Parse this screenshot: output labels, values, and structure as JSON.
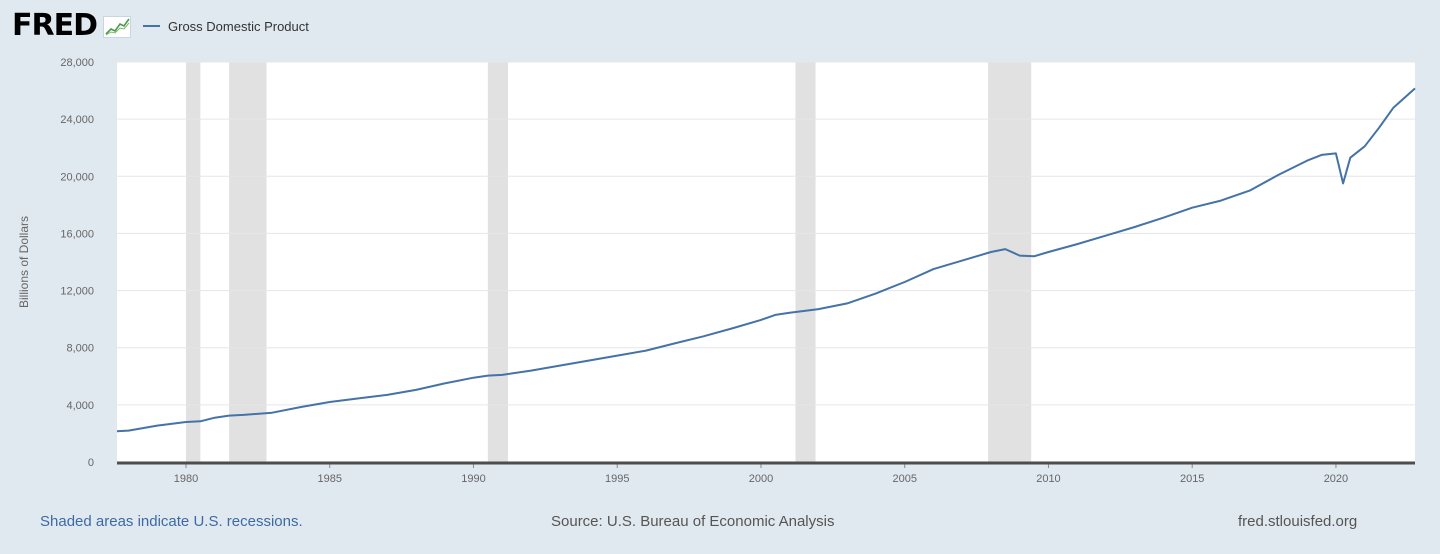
{
  "logo": {
    "text": "FRED"
  },
  "footer": {
    "note": "Shaded areas indicate U.S. recessions.",
    "source": "Source: U.S. Bureau of Economic Analysis",
    "site": "fred.stlouisfed.org"
  },
  "colors": {
    "line": "#4572a7",
    "recession": "#e1e1e1",
    "background": "#e1e9f0",
    "plot": "#ffffff"
  },
  "chart_data": {
    "type": "line",
    "title": "",
    "xlabel": "",
    "ylabel": "Billions of Dollars",
    "xlim": [
      1977.6,
      2022.75
    ],
    "ylim": [
      0,
      28000
    ],
    "grid": true,
    "legend_position": "top-left",
    "x_ticks": [
      1980,
      1985,
      1990,
      1995,
      2000,
      2005,
      2010,
      2015,
      2020
    ],
    "y_ticks": [
      {
        "value": 0,
        "label": "0"
      },
      {
        "value": 4000,
        "label": "4,000"
      },
      {
        "value": 8000,
        "label": "8,000"
      },
      {
        "value": 12000,
        "label": "12,000"
      },
      {
        "value": 16000,
        "label": "16,000"
      },
      {
        "value": 20000,
        "label": "20,000"
      },
      {
        "value": 24000,
        "label": "24,000"
      },
      {
        "value": 28000,
        "label": "28,000"
      }
    ],
    "recessions": [
      [
        1980.0,
        1980.5
      ],
      [
        1981.5,
        1982.8
      ],
      [
        1990.5,
        1991.2
      ],
      [
        2001.2,
        2001.9
      ],
      [
        2007.9,
        2009.4
      ]
    ],
    "series": [
      {
        "name": "Gross Domestic Product",
        "points": [
          [
            1977.6,
            2150
          ],
          [
            1978.0,
            2200
          ],
          [
            1979.0,
            2550
          ],
          [
            1980.0,
            2800
          ],
          [
            1980.5,
            2850
          ],
          [
            1981.0,
            3100
          ],
          [
            1981.5,
            3250
          ],
          [
            1982.0,
            3300
          ],
          [
            1983.0,
            3450
          ],
          [
            1984.0,
            3850
          ],
          [
            1985.0,
            4200
          ],
          [
            1986.0,
            4450
          ],
          [
            1987.0,
            4700
          ],
          [
            1988.0,
            5050
          ],
          [
            1989.0,
            5500
          ],
          [
            1990.0,
            5900
          ],
          [
            1990.5,
            6050
          ],
          [
            1991.0,
            6100
          ],
          [
            1992.0,
            6400
          ],
          [
            1993.0,
            6750
          ],
          [
            1994.0,
            7100
          ],
          [
            1995.0,
            7450
          ],
          [
            1996.0,
            7800
          ],
          [
            1997.0,
            8300
          ],
          [
            1998.0,
            8800
          ],
          [
            1999.0,
            9350
          ],
          [
            2000.0,
            9950
          ],
          [
            2000.5,
            10300
          ],
          [
            2001.0,
            10450
          ],
          [
            2002.0,
            10700
          ],
          [
            2003.0,
            11100
          ],
          [
            2004.0,
            11800
          ],
          [
            2005.0,
            12600
          ],
          [
            2006.0,
            13500
          ],
          [
            2007.0,
            14100
          ],
          [
            2008.0,
            14700
          ],
          [
            2008.5,
            14900
          ],
          [
            2009.0,
            14450
          ],
          [
            2009.5,
            14400
          ],
          [
            2010.0,
            14700
          ],
          [
            2011.0,
            15250
          ],
          [
            2012.0,
            15850
          ],
          [
            2013.0,
            16450
          ],
          [
            2014.0,
            17100
          ],
          [
            2015.0,
            17800
          ],
          [
            2016.0,
            18300
          ],
          [
            2017.0,
            19000
          ],
          [
            2018.0,
            20100
          ],
          [
            2019.0,
            21100
          ],
          [
            2019.5,
            21500
          ],
          [
            2020.0,
            21600
          ],
          [
            2020.25,
            19500
          ],
          [
            2020.5,
            21300
          ],
          [
            2021.0,
            22100
          ],
          [
            2021.5,
            23400
          ],
          [
            2022.0,
            24800
          ],
          [
            2022.75,
            26150
          ]
        ]
      }
    ]
  }
}
